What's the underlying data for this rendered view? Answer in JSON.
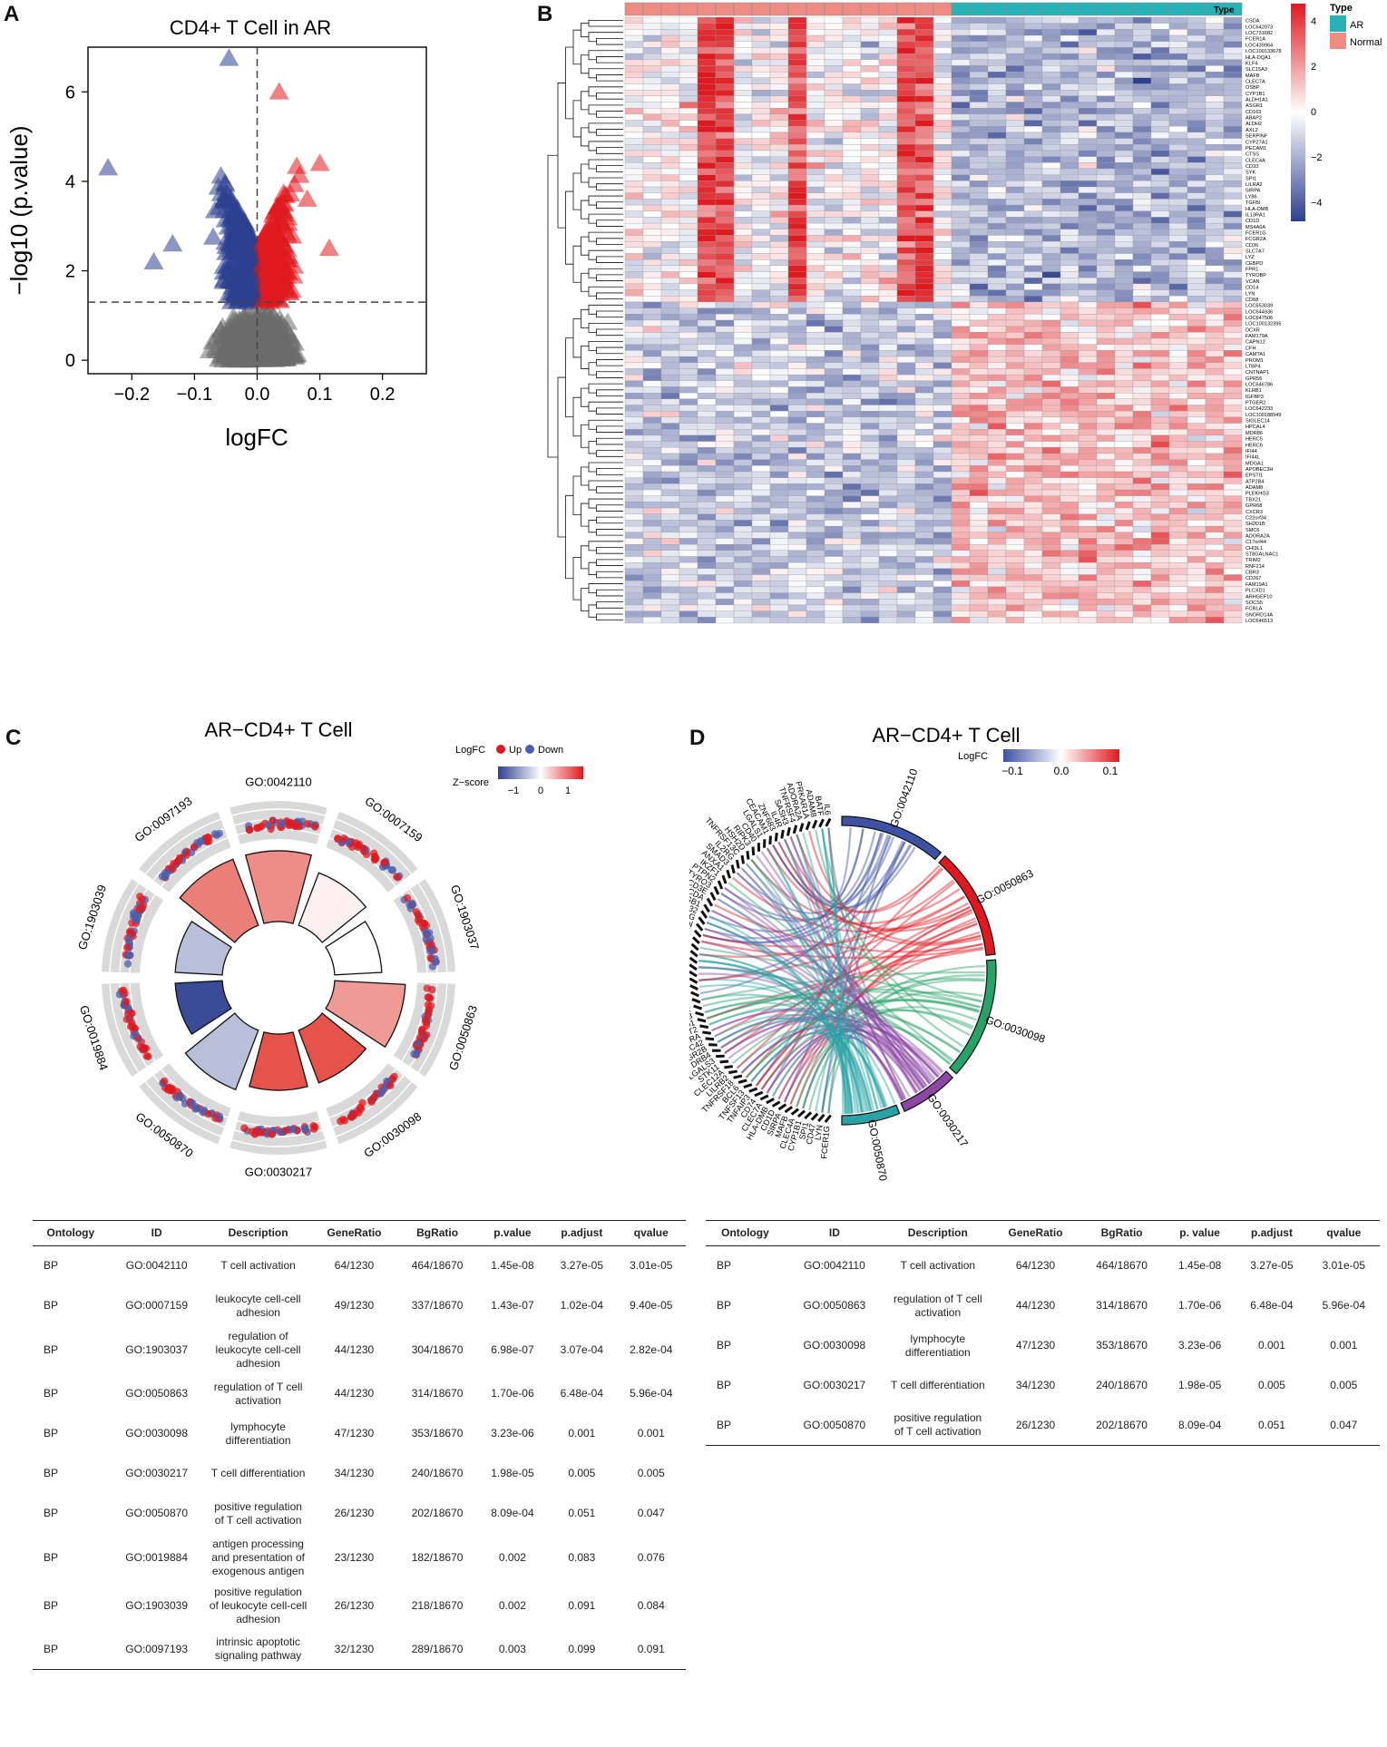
{
  "panel_labels": {
    "a": "A",
    "b": "B",
    "c": "C",
    "d": "D"
  },
  "panel_a": {
    "chart_data": {
      "type": "scatter",
      "title": "CD4+ T Cell in AR",
      "xlabel": "logFC",
      "ylabel": "−log10 (p.value)",
      "xlim": [
        -0.27,
        0.27
      ],
      "ylim": [
        -0.3,
        7.0
      ],
      "xticks": [
        -0.2,
        -0.1,
        0.0,
        0.1,
        0.2
      ],
      "xtick_labels": [
        "−0.2",
        "−0.1",
        "0.0",
        "0.1",
        "0.2"
      ],
      "yticks": [
        0,
        2,
        4,
        6
      ],
      "threshold_y": 1.3,
      "threshold_x": 0,
      "series": [
        {
          "name": "Down",
          "color": "#2e3f8f"
        },
        {
          "name": "Up",
          "color": "#e0191f"
        },
        {
          "name": "NS",
          "color": "#6b6b6b"
        }
      ],
      "highlight_points": [
        {
          "x": -0.238,
          "y": 4.3,
          "group": "Down"
        },
        {
          "x": -0.045,
          "y": 6.75,
          "group": "Down"
        },
        {
          "x": -0.165,
          "y": 2.2,
          "group": "Down"
        },
        {
          "x": -0.135,
          "y": 2.6,
          "group": "Down"
        },
        {
          "x": 0.035,
          "y": 6.0,
          "group": "Up"
        },
        {
          "x": 0.1,
          "y": 4.4,
          "group": "Up"
        },
        {
          "x": 0.115,
          "y": 2.5,
          "group": "Up"
        },
        {
          "x": 0.08,
          "y": 3.6,
          "group": "Up"
        }
      ]
    }
  },
  "panel_b": {
    "legend_title": "Type",
    "legend_items": [
      {
        "label": "AR",
        "color": "#27b3b5"
      },
      {
        "label": "Normal",
        "color": "#ee8c84"
      }
    ],
    "colorbar_ticks": [
      "4",
      "2",
      "0",
      "−2",
      "−4"
    ],
    "colors": {
      "high": "#e0191f",
      "mid": "#ffffff",
      "low": "#2e3f8f"
    },
    "genes": [
      "CSDA",
      "LOC642073",
      "LOC731682",
      "FCER1A",
      "LOC439964",
      "LOC100133678",
      "HLA-DQA1",
      "KLF4",
      "SLC15A3",
      "MAFB",
      "CLEC7A",
      "OSBP",
      "CYP1B1",
      "ALDH1A1",
      "ASGR1",
      "CD163",
      "ABAP2",
      "ALDH2",
      "AXL2",
      "SERPINF",
      "CYP27A1",
      "PECAM1",
      "CTSS",
      "CLEC4A",
      "CD33",
      "SYK",
      "SPI1",
      "LILRA2",
      "SIRPA",
      "LY86",
      "TGFBI",
      "HLA-DMB",
      "IL13RA1",
      "CD1D",
      "MS4A6A",
      "FCER1G",
      "FCGR2A",
      "CD36",
      "SLC7A7",
      "LYZ",
      "CEBPD",
      "FPR1",
      "TYROBP",
      "VCAN",
      "CD14",
      "LYN",
      "CD68",
      "LOC653039",
      "LOC644936",
      "LOC647506",
      "LOC100132395",
      "DCXR",
      "FAM179A",
      "CAPN12",
      "CFH",
      "CAMTA1",
      "PROM1",
      "LTBP4",
      "CNTNAP1",
      "GPR56",
      "LOC646786",
      "KLRB1",
      "IGFBP3",
      "PTGER2",
      "LOC642233",
      "LOC100188949",
      "SIGLEC14",
      "HPCAL4",
      "MDR86",
      "HERC5",
      "HERC6",
      "IFI44",
      "IFI44L",
      "MDGA1",
      "APOBEC3H",
      "EPSTI1",
      "ATP2B4",
      "ADAM8",
      "PLEKHG3",
      "TBX21",
      "GPR68",
      "CXCR3",
      "C22orf34",
      "SH2D1B",
      "SMC6",
      "ADORA2A",
      "C17orf44",
      "CHI3L1",
      "ST8GALNAC1",
      "TRIM2",
      "RNF214",
      "CBR3",
      "CD267",
      "FAM19A1",
      "PLCXD1",
      "ARHGEF10",
      "SOCS5",
      "FCRLA",
      "SNORD14A",
      "LOC646513"
    ]
  },
  "panel_c": {
    "title": "AR−CD4+ T Cell",
    "logfc_legend_label": "LogFC",
    "up_label": "Up",
    "down_label": "Down",
    "up_color": "#e0191f",
    "down_color": "#4b5fae",
    "zscore_label": "Z−score",
    "zscore_ticks": [
      "−1",
      "0",
      "1"
    ],
    "terms": [
      {
        "id": "GO:0042110",
        "z": 0.8
      },
      {
        "id": "GO:0007159",
        "z": 0.1
      },
      {
        "id": "GO:1903037",
        "z": 0.0
      },
      {
        "id": "GO:0050863",
        "z": 0.7
      },
      {
        "id": "GO:0030098",
        "z": 1.2
      },
      {
        "id": "GO:0030217",
        "z": 1.2
      },
      {
        "id": "GO:0050870",
        "z": -0.5
      },
      {
        "id": "GO:0019884",
        "z": -1.4
      },
      {
        "id": "GO:1903039",
        "z": -0.5
      },
      {
        "id": "GO:0097193",
        "z": 0.9
      }
    ]
  },
  "panel_d": {
    "title": "AR−CD4+ T Cell",
    "logfc_label": "LogFC",
    "logfc_ticks": [
      "−0.1",
      "0.0",
      "0.1"
    ],
    "terms": [
      {
        "id": "GO:0042110",
        "color": "#3f51a3"
      },
      {
        "id": "GO:0050863",
        "color": "#e0191f"
      },
      {
        "id": "GO:0030098",
        "color": "#27a268"
      },
      {
        "id": "GO:0030217",
        "color": "#8b47a3"
      },
      {
        "id": "GO:0050870",
        "color": "#2aa3a6"
      }
    ],
    "genes": [
      "FCER1G",
      "LYN",
      "CD47",
      "SPI1",
      "CYP1B1",
      "CLEC4A",
      "MAFB",
      "SIRPA",
      "CD1D",
      "HLA-DMB",
      "CLEC7A",
      "CD74",
      "TNFAIP3",
      "TNFSF13",
      "BCL6",
      "TNFRSF18",
      "LILRB2",
      "CLEC12A",
      "STK11",
      "LGALS3",
      "DRB4",
      "FCGR2B",
      "CDC42",
      "IL27RA",
      "PAT2",
      "AP3D1",
      "ZBTB7B",
      "RAC2",
      "PRDX2",
      "SLA2",
      "TPD52",
      "RASAL3",
      "PCID2",
      "RORC",
      "IFNE",
      "IL12RB1",
      "DOCK8",
      "SLAMF6",
      "GNRH1",
      "SPN",
      "PIK3CG",
      "LRRC32",
      "ITGB1",
      "AICDA",
      "CD3E",
      "TYRO3",
      "PTPN2",
      "IKZF1",
      "ANXA1",
      "SMAD3",
      "IL2RG",
      "TNFRSF13C",
      "HSH2D",
      "RIPK3",
      "CD40",
      "LGALS1",
      "CEACAM1",
      "ZNF683",
      "IL4R",
      "SASH3",
      "TNFRSF4",
      "ADORA2A",
      "PRKAR1A",
      "ADAM8",
      "BATF",
      "IL6"
    ]
  },
  "table_c": {
    "headers": [
      "Ontology",
      "ID",
      "Description",
      "GeneRatio",
      "BgRatio",
      "p.value",
      "p.adjust",
      "qvalue"
    ],
    "rows": [
      [
        "BP",
        "GO:0042110",
        "T cell activation",
        "64/1230",
        "464/18670",
        "1.45e-08",
        "3.27e-05",
        "3.01e-05"
      ],
      [
        "BP",
        "GO:0007159",
        "leukocyte cell-cell adhesion",
        "49/1230",
        "337/18670",
        "1.43e-07",
        "1.02e-04",
        "9.40e-05"
      ],
      [
        "BP",
        "GO:1903037",
        "regulation of leukocyte cell-cell adhesion",
        "44/1230",
        "304/18670",
        "6.98e-07",
        "3.07e-04",
        "2.82e-04"
      ],
      [
        "BP",
        "GO:0050863",
        "regulation of T cell activation",
        "44/1230",
        "314/18670",
        "1.70e-06",
        "6.48e-04",
        "5.96e-04"
      ],
      [
        "BP",
        "GO:0030098",
        "lymphocyte differentiation",
        "47/1230",
        "353/18670",
        "3.23e-06",
        "0.001",
        "0.001"
      ],
      [
        "BP",
        "GO:0030217",
        "T cell differentiation",
        "34/1230",
        "240/18670",
        "1.98e-05",
        "0.005",
        "0.005"
      ],
      [
        "BP",
        "GO:0050870",
        "positive regulation of T cell activation",
        "26/1230",
        "202/18670",
        "8.09e-04",
        "0.051",
        "0.047"
      ],
      [
        "BP",
        "GO:0019884",
        "antigen processing and presentation of exogenous antigen",
        "23/1230",
        "182/18670",
        "0.002",
        "0.083",
        "0.076"
      ],
      [
        "BP",
        "GO:1903039",
        "positive regulation of leukocyte cell-cell adhesion",
        "26/1230",
        "218/18670",
        "0.002",
        "0.091",
        "0.084"
      ],
      [
        "BP",
        "GO:0097193",
        "intrinsic apoptotic signaling pathway",
        "32/1230",
        "289/18670",
        "0.003",
        "0.099",
        "0.091"
      ]
    ]
  },
  "table_d": {
    "headers": [
      "Ontology",
      "ID",
      "Description",
      "GeneRatio",
      "BgRatio",
      "p. value",
      "p.adjust",
      "qvalue"
    ],
    "rows": [
      [
        "BP",
        "GO:0042110",
        "T cell activation",
        "64/1230",
        "464/18670",
        "1.45e-08",
        "3.27e-05",
        "3.01e-05"
      ],
      [
        "BP",
        "GO:0050863",
        "regulation of T cell activation",
        "44/1230",
        "314/18670",
        "1.70e-06",
        "6.48e-04",
        "5.96e-04"
      ],
      [
        "BP",
        "GO:0030098",
        "lymphocyte differentiation",
        "47/1230",
        "353/18670",
        "3.23e-06",
        "0.001",
        "0.001"
      ],
      [
        "BP",
        "GO:0030217",
        "T cell differentiation",
        "34/1230",
        "240/18670",
        "1.98e-05",
        "0.005",
        "0.005"
      ],
      [
        "BP",
        "GO:0050870",
        "positive regulation of T cell activation",
        "26/1230",
        "202/18670",
        "8.09e-04",
        "0.051",
        "0.047"
      ]
    ]
  }
}
